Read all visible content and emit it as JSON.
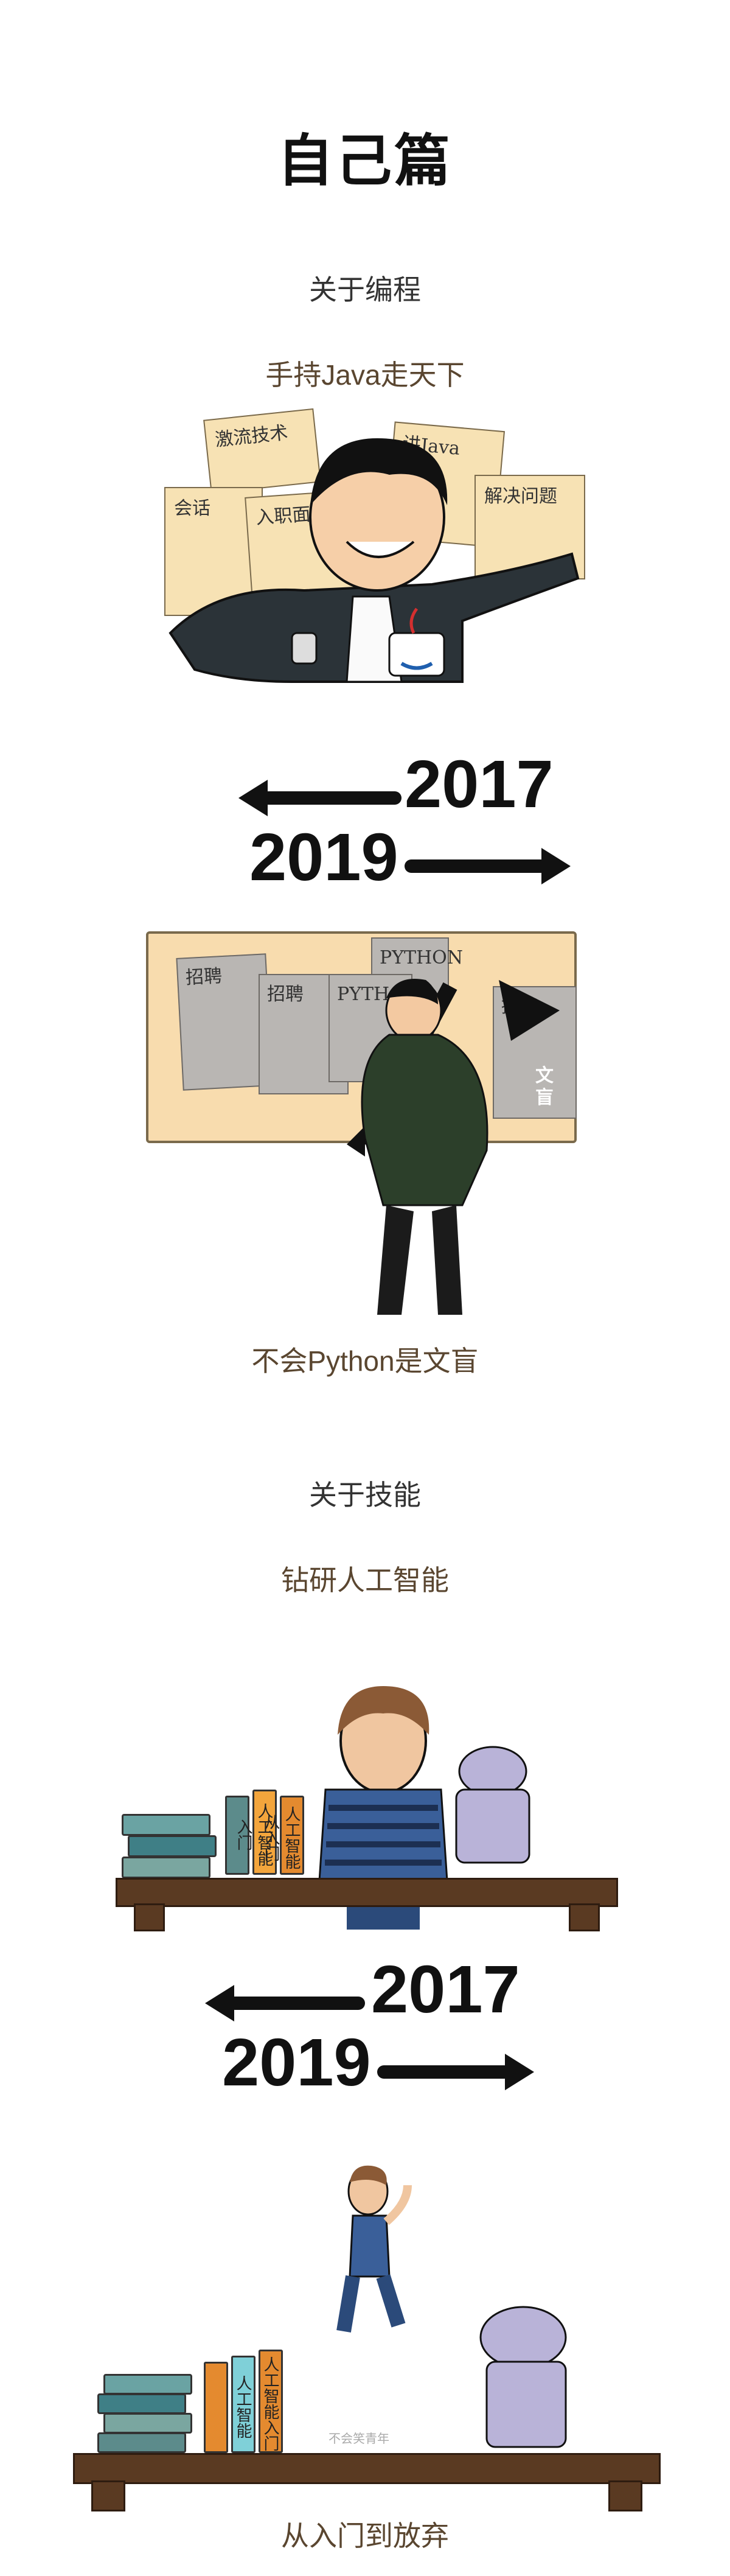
{
  "title": "自己篇",
  "section1": {
    "label": "关于编程",
    "caption_top": "手持Java走天下",
    "notes": [
      "激流技术",
      "会话",
      "入职面试",
      "讲Java",
      "解决问题"
    ],
    "timeline": {
      "year_left": "2017",
      "year_right": "2019"
    },
    "board_cards": [
      "招聘",
      "招聘",
      "PYTHON",
      "PYTHON",
      "招聘",
      "文盲"
    ],
    "caption_bottom": "不会Python是文盲"
  },
  "section2": {
    "label": "关于技能",
    "caption_top": "钻研人工智能",
    "books": [
      "人工智能入门",
      "人工智能从入门"
    ],
    "timeline": {
      "year_left": "2017",
      "year_right": "2019"
    },
    "books_bottom": [
      "人工智能",
      "人工智能入门"
    ],
    "watermark": "不会笑青年",
    "caption_bottom": "从入门到放弃"
  },
  "colors": {
    "paper": "#f7e2b4",
    "shelf": "#5a3a22",
    "robot": "#b9b3d8",
    "jacket": "#2c3f2a"
  }
}
